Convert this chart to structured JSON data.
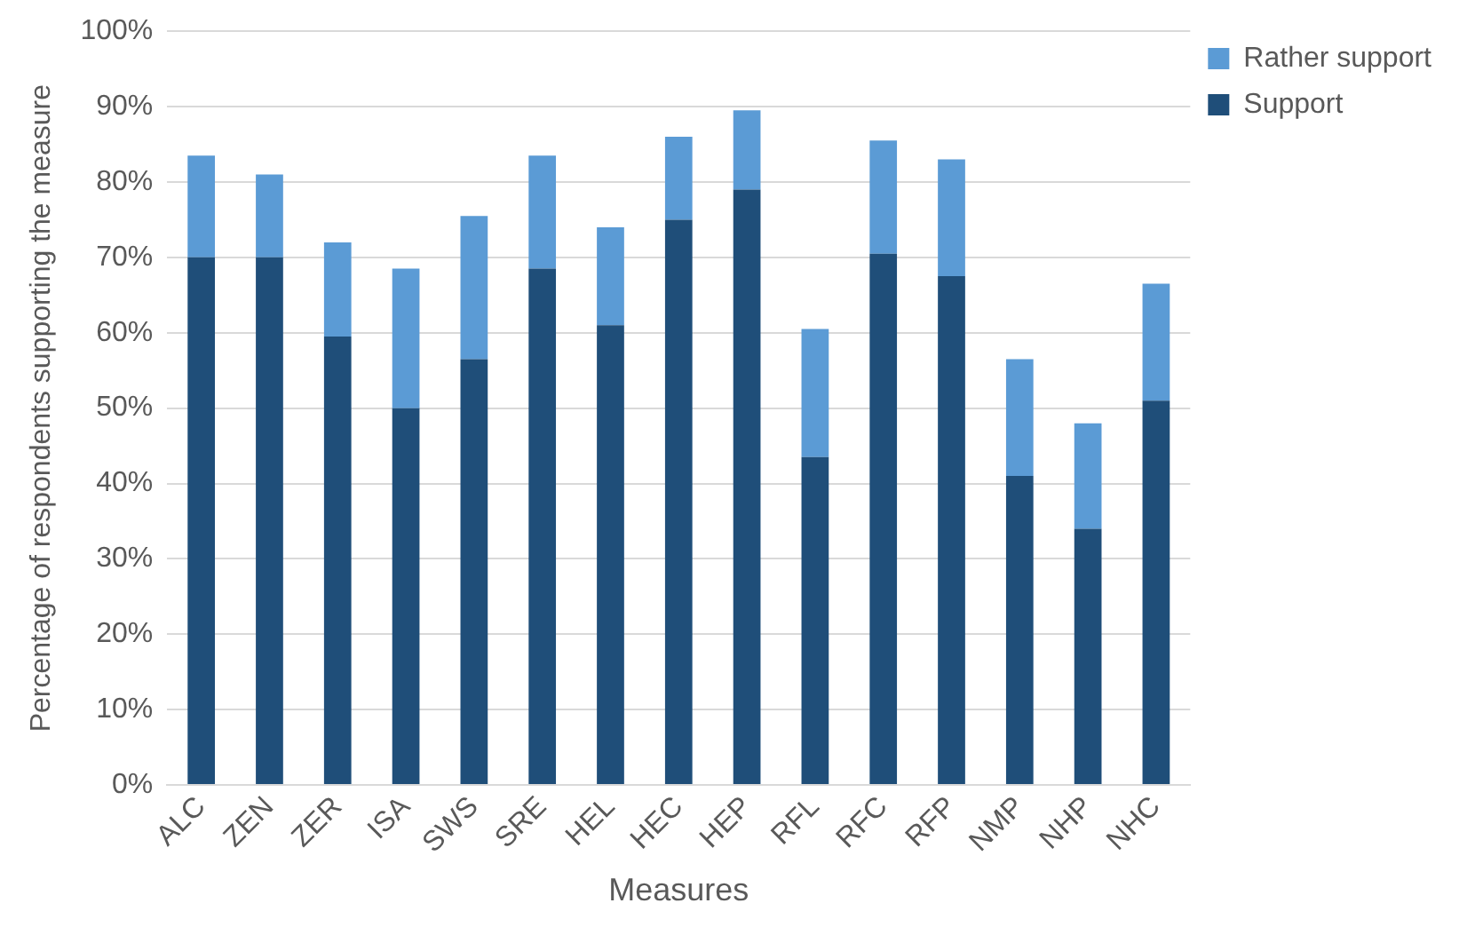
{
  "chart_data": {
    "type": "bar",
    "stacked": true,
    "xlabel": "Measures",
    "ylabel": "Percentage of respondents supporting the measure",
    "categories": [
      "ALC",
      "ZEN",
      "ZER",
      "ISA",
      "SWS",
      "SRE",
      "HEL",
      "HEC",
      "HEP",
      "RFL",
      "RFC",
      "RFP",
      "NMP",
      "NHP",
      "NHC"
    ],
    "series": [
      {
        "name": "Support",
        "color": "#1f4e79",
        "values": [
          70,
          70,
          59.5,
          50,
          56.5,
          68.5,
          61,
          75,
          79,
          43.5,
          70.5,
          67.5,
          41,
          34,
          51
        ]
      },
      {
        "name": "Rather support",
        "color": "#5b9bd5",
        "values": [
          13.5,
          11,
          12.5,
          18.5,
          19,
          15,
          13,
          11,
          10.5,
          17,
          15,
          15.5,
          15.5,
          14,
          15.5
        ]
      }
    ],
    "ylim": [
      0,
      100
    ],
    "yticks": [
      {
        "value": 0,
        "label": "0%"
      },
      {
        "value": 10,
        "label": "10%"
      },
      {
        "value": 20,
        "label": "20%"
      },
      {
        "value": 30,
        "label": "30%"
      },
      {
        "value": 40,
        "label": "40%"
      },
      {
        "value": 50,
        "label": "50%"
      },
      {
        "value": 60,
        "label": "60%"
      },
      {
        "value": 70,
        "label": "70%"
      },
      {
        "value": 80,
        "label": "80%"
      },
      {
        "value": 90,
        "label": "90%"
      },
      {
        "value": 100,
        "label": "100%"
      }
    ],
    "grid": "y",
    "legend": "right"
  }
}
